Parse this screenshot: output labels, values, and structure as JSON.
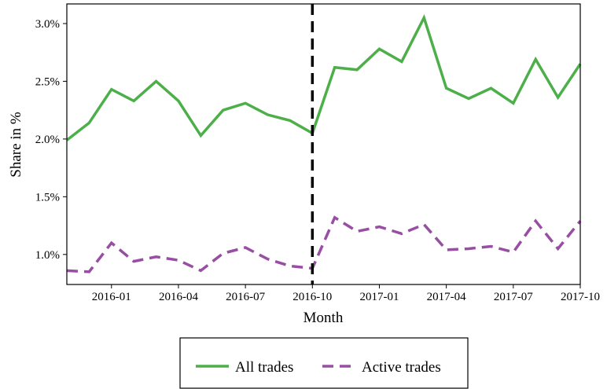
{
  "chart_data": {
    "type": "line",
    "xlabel": "Month",
    "ylabel": "Share in %",
    "x": [
      "2015-11",
      "2015-12",
      "2016-01",
      "2016-02",
      "2016-03",
      "2016-04",
      "2016-05",
      "2016-06",
      "2016-07",
      "2016-08",
      "2016-09",
      "2016-10",
      "2016-11",
      "2016-12",
      "2017-01",
      "2017-02",
      "2017-03",
      "2017-04",
      "2017-05",
      "2017-06",
      "2017-07",
      "2017-08",
      "2017-09",
      "2017-10"
    ],
    "series": [
      {
        "name": "All trades",
        "color": "#4daf4a",
        "dash": "solid",
        "values": [
          1.99,
          2.14,
          2.43,
          2.33,
          2.5,
          2.33,
          2.03,
          2.25,
          2.31,
          2.21,
          2.16,
          2.05,
          2.62,
          2.6,
          2.78,
          2.67,
          3.05,
          2.44,
          2.35,
          2.44,
          2.31,
          2.69,
          2.36,
          2.65
        ]
      },
      {
        "name": "Active trades",
        "color": "#984ea3",
        "dash": "dashed",
        "values": [
          0.86,
          0.85,
          1.1,
          0.94,
          0.98,
          0.95,
          0.86,
          1.01,
          1.06,
          0.96,
          0.9,
          0.88,
          1.32,
          1.2,
          1.24,
          1.18,
          1.26,
          1.04,
          1.05,
          1.07,
          1.02,
          1.29,
          1.05,
          1.29
        ]
      }
    ],
    "xlim": [
      "2015-11",
      "2017-10"
    ],
    "xticks": [
      "2016-01",
      "2016-04",
      "2016-07",
      "2016-10",
      "2017-01",
      "2017-04",
      "2017-07",
      "2017-10"
    ],
    "ylim": [
      0.74,
      3.17
    ],
    "yticks": [
      {
        "value": 1.0,
        "label": "1.0%"
      },
      {
        "value": 1.5,
        "label": "1.5%"
      },
      {
        "value": 2.0,
        "label": "2.0%"
      },
      {
        "value": 2.5,
        "label": "2.5%"
      },
      {
        "value": 3.0,
        "label": "3.0%"
      }
    ],
    "vline": "2016-10",
    "legend": "bottom"
  }
}
